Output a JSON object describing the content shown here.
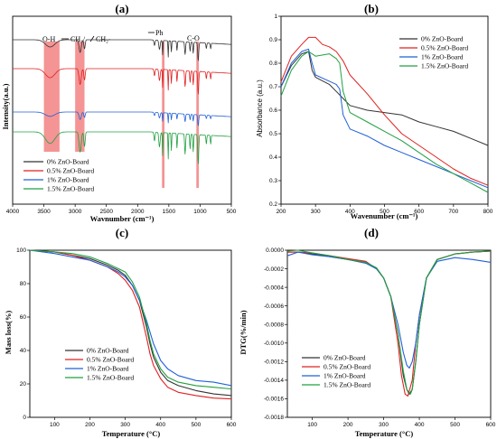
{
  "chart_data": [
    {
      "id": "a",
      "type": "line",
      "title": "(a)",
      "xlabel": "Wavnumber (cm⁻¹)",
      "ylabel": "Intensity(a.u.)",
      "xlim": [
        4000,
        500
      ],
      "xticks": [
        4000,
        3500,
        3000,
        2500,
        2000,
        1500,
        1000,
        500
      ],
      "annotations": [
        "O-H",
        "CH₃/",
        "CH₂-",
        "Ph",
        "C-O"
      ],
      "bands": [
        [
          3500,
          3250
        ],
        [
          3000,
          2850
        ],
        [
          1610,
          1570
        ],
        [
          1060,
          1020
        ]
      ],
      "series": [
        {
          "name": "0% ZnO-Board",
          "color": "#333333"
        },
        {
          "name": "0.5% ZnO-Board",
          "color": "#e02020"
        },
        {
          "name": "1% ZnO-Board",
          "color": "#2060d8"
        },
        {
          "name": "1.5% ZnO-Board",
          "color": "#20a040"
        }
      ]
    },
    {
      "id": "b",
      "type": "line",
      "title": "(b)",
      "xlabel": "Wavenumber (cm⁻¹)",
      "ylabel": "Absorbance (a.u.)",
      "xlim": [
        200,
        800
      ],
      "ylim": [
        0.2,
        1.0
      ],
      "xticks": [
        200,
        300,
        400,
        500,
        600,
        700,
        800
      ],
      "yticks": [
        0.2,
        0.3,
        0.4,
        0.5,
        0.6,
        0.7,
        0.8,
        0.9,
        1.0
      ],
      "series": [
        {
          "name": "0% ZnO-Board",
          "color": "#333333",
          "x": [
            200,
            230,
            260,
            280,
            290,
            300,
            340,
            360,
            380,
            400,
            450,
            500,
            550,
            600,
            650,
            700,
            750,
            800
          ],
          "y": [
            0.7,
            0.79,
            0.84,
            0.85,
            0.77,
            0.74,
            0.71,
            0.68,
            0.65,
            0.62,
            0.6,
            0.59,
            0.58,
            0.55,
            0.53,
            0.51,
            0.48,
            0.45
          ]
        },
        {
          "name": "0.5% ZnO-Board",
          "color": "#e02020",
          "x": [
            200,
            230,
            260,
            280,
            300,
            320,
            340,
            360,
            380,
            400,
            450,
            500,
            550,
            600,
            650,
            700,
            750,
            800
          ],
          "y": [
            0.72,
            0.83,
            0.88,
            0.91,
            0.91,
            0.88,
            0.87,
            0.85,
            0.81,
            0.75,
            0.67,
            0.58,
            0.5,
            0.45,
            0.4,
            0.35,
            0.31,
            0.28
          ]
        },
        {
          "name": "1% ZnO-Board",
          "color": "#2060d8",
          "x": [
            200,
            230,
            260,
            280,
            290,
            300,
            330,
            360,
            370,
            380,
            400,
            450,
            500,
            550,
            600,
            650,
            700,
            750,
            800
          ],
          "y": [
            0.7,
            0.8,
            0.85,
            0.86,
            0.8,
            0.75,
            0.73,
            0.71,
            0.69,
            0.58,
            0.52,
            0.49,
            0.45,
            0.42,
            0.39,
            0.36,
            0.33,
            0.3,
            0.27
          ]
        },
        {
          "name": "1.5% ZnO-Board",
          "color": "#20a040",
          "x": [
            200,
            230,
            260,
            280,
            300,
            340,
            360,
            370,
            380,
            400,
            450,
            500,
            550,
            600,
            650,
            700,
            750,
            800
          ],
          "y": [
            0.66,
            0.77,
            0.83,
            0.85,
            0.83,
            0.84,
            0.82,
            0.8,
            0.68,
            0.59,
            0.55,
            0.51,
            0.47,
            0.42,
            0.37,
            0.33,
            0.29,
            0.25
          ]
        }
      ],
      "legend": "top-right"
    },
    {
      "id": "c",
      "type": "line",
      "title": "(c)",
      "xlabel": "Temperature (°C)",
      "ylabel": "Mass loss(%)",
      "xlim": [
        30,
        600
      ],
      "ylim": [
        0,
        100
      ],
      "xticks": [
        100,
        200,
        300,
        400,
        500,
        600
      ],
      "yticks": [
        0,
        20,
        40,
        60,
        80,
        100
      ],
      "series": [
        {
          "name": "0% ZnO-Board",
          "color": "#333333",
          "x": [
            30,
            100,
            150,
            200,
            250,
            280,
            300,
            320,
            340,
            360,
            370,
            380,
            400,
            420,
            450,
            500,
            550,
            600
          ],
          "y": [
            100,
            99,
            97,
            95,
            91,
            88,
            85,
            79,
            70,
            54,
            44,
            36,
            27,
            22,
            19,
            16,
            14,
            13
          ]
        },
        {
          "name": "0.5% ZnO-Board",
          "color": "#e02020",
          "x": [
            30,
            100,
            150,
            200,
            250,
            280,
            300,
            320,
            340,
            360,
            370,
            380,
            400,
            420,
            450,
            500,
            550,
            600
          ],
          "y": [
            100,
            99,
            97,
            94,
            90,
            86,
            82,
            76,
            66,
            48,
            38,
            31,
            23,
            18,
            15,
            13,
            11.5,
            11
          ]
        },
        {
          "name": "1% ZnO-Board",
          "color": "#2060d8",
          "x": [
            30,
            100,
            150,
            200,
            250,
            280,
            300,
            320,
            340,
            360,
            380,
            400,
            420,
            450,
            500,
            550,
            600
          ],
          "y": [
            100,
            98,
            96,
            94,
            90,
            87,
            84,
            79,
            70,
            58,
            44,
            34,
            29,
            25,
            22,
            21,
            19
          ]
        },
        {
          "name": "1.5% ZnO-Board",
          "color": "#20a040",
          "x": [
            30,
            100,
            150,
            200,
            250,
            280,
            300,
            320,
            340,
            360,
            370,
            380,
            400,
            420,
            450,
            500,
            550,
            600
          ],
          "y": [
            100,
            99,
            98,
            96,
            92,
            89,
            87,
            81,
            72,
            56,
            46,
            38,
            29,
            24,
            21,
            19,
            18,
            17
          ]
        }
      ],
      "legend": "bottom-center"
    },
    {
      "id": "d",
      "type": "line",
      "title": "(d)",
      "xlabel": "Temperature (°C)",
      "ylabel": "DTG(%/min)",
      "xlim": [
        30,
        600
      ],
      "ylim": [
        -0.0018,
        0.0
      ],
      "xticks": [
        100,
        200,
        300,
        400,
        500,
        600
      ],
      "yticks": [
        "0.0000",
        "-0.0002",
        "-0.0004",
        "-0.0006",
        "-0.0008",
        "-0.0010",
        "-0.0012",
        "-0.0014",
        "-0.0016",
        "-0.0018"
      ],
      "series": [
        {
          "name": "0% ZnO-Board",
          "color": "#333333",
          "x": [
            30,
            60,
            100,
            150,
            200,
            250,
            280,
            300,
            320,
            340,
            355,
            365,
            372,
            380,
            390,
            400,
            420,
            450,
            500,
            550,
            600
          ],
          "y": [
            -2e-05,
            -2e-05,
            -4e-05,
            -7e-05,
            -0.0001,
            -0.00013,
            -0.0002,
            -0.0003,
            -0.0005,
            -0.0009,
            -0.00135,
            -0.0015,
            -0.00155,
            -0.0015,
            -0.0012,
            -0.0008,
            -0.0003,
            -0.0001,
            -4e-05,
            -2e-05,
            -1e-05
          ]
        },
        {
          "name": "0.5% ZnO-Board",
          "color": "#e02020",
          "x": [
            30,
            60,
            100,
            150,
            200,
            250,
            280,
            300,
            320,
            340,
            350,
            360,
            368,
            380,
            390,
            400,
            420,
            450,
            500,
            550,
            600
          ],
          "y": [
            -2e-05,
            -2e-05,
            -3e-05,
            -6e-05,
            -9e-05,
            -0.00012,
            -0.0002,
            -0.0003,
            -0.0005,
            -0.001,
            -0.00135,
            -0.00155,
            -0.00157,
            -0.0014,
            -0.001,
            -0.0007,
            -0.0003,
            -0.0001,
            -4e-05,
            -2e-05,
            -1e-05
          ]
        },
        {
          "name": "1% ZnO-Board",
          "color": "#2060d8",
          "x": [
            30,
            60,
            100,
            150,
            200,
            250,
            280,
            300,
            320,
            340,
            355,
            365,
            372,
            380,
            390,
            400,
            420,
            450,
            500,
            550,
            600
          ],
          "y": [
            -6e-05,
            -2e-05,
            -5e-05,
            -7e-05,
            -0.0001,
            -0.00014,
            -0.0002,
            -0.0003,
            -0.0005,
            -0.0008,
            -0.0011,
            -0.00124,
            -0.00127,
            -0.0012,
            -0.001,
            -0.0007,
            -0.0003,
            -0.00012,
            -8e-05,
            -0.0001,
            -0.00013
          ]
        },
        {
          "name": "1.5% ZnO-Board",
          "color": "#20a040",
          "x": [
            30,
            60,
            100,
            150,
            200,
            250,
            280,
            300,
            320,
            340,
            355,
            365,
            375,
            380,
            390,
            400,
            420,
            450,
            500,
            550,
            600
          ],
          "y": [
            -1e-05,
            0.0,
            -3e-05,
            -6e-05,
            -0.0001,
            -0.00013,
            -0.00019,
            -0.0003,
            -0.0005,
            -0.0009,
            -0.0013,
            -0.0015,
            -0.00155,
            -0.0015,
            -0.0012,
            -0.0008,
            -0.0003,
            -0.0001,
            -4e-05,
            -2e-05,
            -1e-05
          ]
        }
      ],
      "legend": "bottom-left"
    }
  ]
}
